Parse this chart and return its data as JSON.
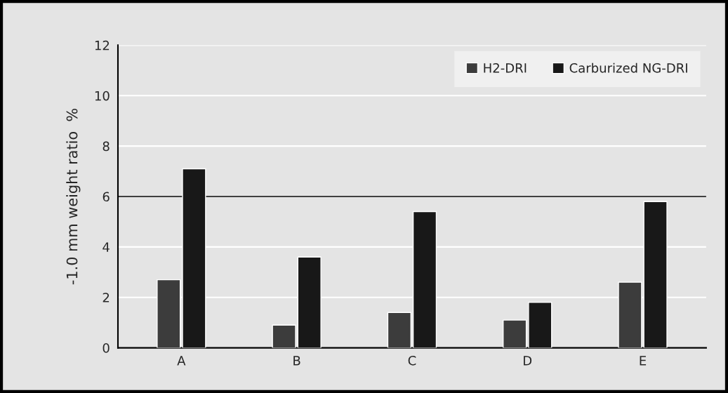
{
  "chart_data": {
    "type": "bar",
    "ylabel": "-1.0 mm weight ratio  %",
    "categories": [
      "A",
      "B",
      "C",
      "D",
      "E"
    ],
    "series": [
      {
        "name": "H2-DRI",
        "color": "#3c3c3c",
        "values": [
          2.7,
          0.9,
          1.4,
          1.1,
          2.6
        ]
      },
      {
        "name": "Carburized NG-DRI",
        "color": "#181818",
        "values": [
          7.1,
          3.6,
          5.4,
          1.8,
          5.8
        ]
      }
    ],
    "ylim": [
      0,
      12
    ],
    "yticks": [
      0,
      2,
      4,
      6,
      8,
      10,
      12
    ],
    "grid": "y",
    "legend": "top right",
    "ref_lines": [
      {
        "axis": "y",
        "value": 6,
        "color": "#000000"
      }
    ]
  }
}
